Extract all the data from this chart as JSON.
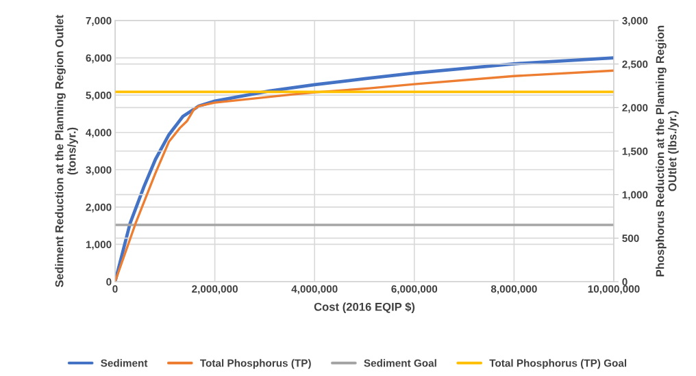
{
  "chart_data": {
    "type": "line",
    "xlabel": "Cost (2016 EQIP $)",
    "ylabel": "Sediment Reduction at the Planning Region Outlet (tons/yr.)",
    "y2label": "Phosphorus Reduction at the Planning Region OUtlet (lbs./yr.)",
    "series": [
      {
        "name": "Sediment",
        "color": "#4472c4",
        "x": [
          0,
          300000,
          580000,
          810000,
          1080000,
          1360000,
          1680000,
          2000000,
          3090000,
          4000000,
          5000000,
          6000000,
          8000000,
          10000000
        ],
        "values": [
          0,
          1560,
          2550,
          3280,
          3940,
          4430,
          4710,
          4840,
          5110,
          5280,
          5440,
          5590,
          5840,
          6000
        ]
      },
      {
        "name": "Total Phosphorus (TP)",
        "color": "#ed7d31",
        "axis": "y2",
        "x": [
          0,
          410000,
          810000,
          1080000,
          1300000,
          1440000,
          1580000,
          1680000,
          2000000,
          3560000,
          4000000,
          5100000,
          6000000,
          8000000,
          10000000
        ],
        "values": [
          0,
          668,
          1248,
          1608,
          1766,
          1843,
          1978,
          2018,
          2057,
          2151,
          2175,
          2221,
          2268,
          2362,
          2425
        ]
      }
    ],
    "ref_lines": [
      {
        "axis": "y",
        "value": 1520,
        "label": "Sediment Goal",
        "color": "#a5a5a5"
      },
      {
        "axis": "y2",
        "value": 2180,
        "label": "Total Phosphorus (TP) Goal",
        "color": "#ffc000"
      }
    ],
    "xlim": [
      0,
      10000000
    ],
    "xticks": [
      0,
      {
        "value": 2000000,
        "label": "2,000,000"
      },
      {
        "value": 4000000,
        "label": "4,000,000"
      },
      {
        "value": 6000000,
        "label": "6,000,000"
      },
      {
        "value": 8000000,
        "label": "8,000,000"
      },
      {
        "value": 10000000,
        "label": "10,000,000"
      }
    ],
    "ylim": [
      0,
      7000
    ],
    "yticks": [
      0,
      {
        "value": 1000,
        "label": "1,000"
      },
      {
        "value": 2000,
        "label": "2,000"
      },
      {
        "value": 3000,
        "label": "3,000"
      },
      {
        "value": 4000,
        "label": "4,000"
      },
      {
        "value": 5000,
        "label": "5,000"
      },
      {
        "value": 6000,
        "label": "6,000"
      },
      {
        "value": 7000,
        "label": "7,000"
      }
    ],
    "y2lim": [
      0,
      3000
    ],
    "y2ticks": [
      0,
      500,
      {
        "value": 1000,
        "label": "1,000"
      },
      {
        "value": 1500,
        "label": "1,500"
      },
      {
        "value": 2000,
        "label": "2,000"
      },
      {
        "value": 2500,
        "label": "2,500"
      },
      {
        "value": 3000,
        "label": "3,000"
      }
    ],
    "grid": true,
    "legend": "bottom",
    "marker": "none",
    "line_style": "solid"
  }
}
